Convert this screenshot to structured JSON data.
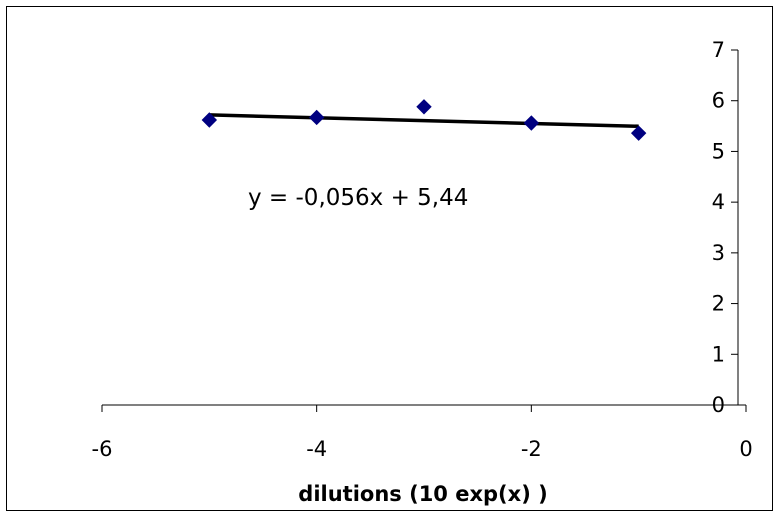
{
  "chart_data": {
    "type": "scatter",
    "title": "",
    "xlabel": "dilutions (10 exp(x) )",
    "ylabel": "",
    "xlim": [
      -6,
      0
    ],
    "ylim": [
      0,
      7
    ],
    "x_ticks": [
      -6,
      -4,
      -2,
      0
    ],
    "y_ticks": [
      0,
      1,
      2,
      3,
      4,
      5,
      6,
      7
    ],
    "y_axis_position": "right",
    "grid": false,
    "legend": "none",
    "series": [
      {
        "x": [
          -5,
          -4,
          -3,
          -2,
          -1
        ],
        "y": [
          5.62,
          5.67,
          5.88,
          5.56,
          5.36
        ],
        "marker": "diamond",
        "color": "#000080"
      }
    ],
    "trendline": {
      "slope": -0.056,
      "intercept": 5.44,
      "x_range": [
        -5,
        -1
      ],
      "color": "#000000",
      "equation_label": "y = -0,056x + 5,44"
    }
  }
}
